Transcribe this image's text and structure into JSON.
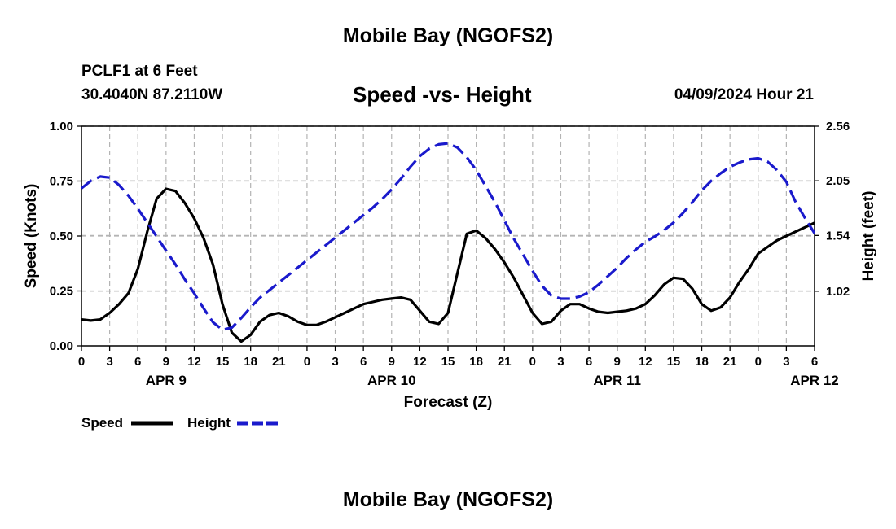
{
  "header": {
    "title": "Mobile Bay (NGOFS2)",
    "station": "PCLF1 at 6 Feet",
    "coordinates": "30.4040N  87.2110W",
    "subtitle": "Speed -vs- Height",
    "run_time": "04/09/2024 Hour 21"
  },
  "footer": {
    "title": "Mobile Bay (NGOFS2)"
  },
  "chart_data": {
    "type": "line",
    "xlabel": "Forecast (Z)",
    "ylabel": "Speed (Knots)",
    "y2label": "Height (feet)",
    "x_unit": "hours since 2024-04-09 00Z",
    "xlim": [
      0,
      78
    ],
    "ylim": [
      0,
      1.0
    ],
    "y2lim": [
      0.51,
      2.56
    ],
    "x_ticks": [
      0,
      3,
      6,
      9,
      12,
      15,
      18,
      21,
      24,
      27,
      30,
      33,
      36,
      39,
      42,
      45,
      48,
      51,
      54,
      57,
      60,
      63,
      66,
      69,
      72,
      75,
      78
    ],
    "x_tick_labels": [
      "0",
      "3",
      "6",
      "9",
      "12",
      "15",
      "18",
      "21",
      "0",
      "3",
      "6",
      "9",
      "12",
      "15",
      "18",
      "21",
      "0",
      "3",
      "6",
      "9",
      "12",
      "15",
      "18",
      "21",
      "0",
      "3",
      "6"
    ],
    "date_ticks": [
      9,
      33,
      57,
      78
    ],
    "date_labels": [
      "APR 9",
      "APR 10",
      "APR 11",
      "APR 12"
    ],
    "y_ticks": [
      0.0,
      0.25,
      0.5,
      0.75,
      1.0
    ],
    "y_tick_labels": [
      "0.00",
      "0.25",
      "0.50",
      "0.75",
      "1.00"
    ],
    "y2_ticks": [
      1.02,
      1.54,
      2.05,
      2.56
    ],
    "y2_tick_labels": [
      "1.02",
      "1.54",
      "2.05",
      "2.56"
    ],
    "grid": true,
    "legend": "bottom-left",
    "series": [
      {
        "name": "Speed",
        "axis": "left",
        "color": "#000000",
        "style": "solid",
        "x": [
          0,
          1,
          2,
          3,
          4,
          5,
          6,
          7,
          8,
          9,
          10,
          11,
          12,
          13,
          14,
          15,
          16,
          17,
          18,
          19,
          20,
          21,
          22,
          23,
          24,
          25,
          26,
          27,
          28,
          29,
          30,
          31,
          32,
          33,
          34,
          35,
          36,
          37,
          38,
          39,
          40,
          41,
          42,
          43,
          44,
          45,
          46,
          47,
          48,
          49,
          50,
          51,
          52,
          53,
          54,
          55,
          56,
          57,
          58,
          59,
          60,
          61,
          62,
          63,
          64,
          65,
          66,
          67,
          68,
          69,
          70,
          71,
          72,
          73,
          74,
          75,
          76,
          77,
          78
        ],
        "values": [
          0.12,
          0.115,
          0.12,
          0.15,
          0.19,
          0.24,
          0.35,
          0.52,
          0.67,
          0.715,
          0.705,
          0.65,
          0.58,
          0.49,
          0.37,
          0.19,
          0.06,
          0.02,
          0.05,
          0.11,
          0.14,
          0.15,
          0.135,
          0.11,
          0.095,
          0.095,
          0.11,
          0.13,
          0.15,
          0.17,
          0.19,
          0.2,
          0.21,
          0.215,
          0.22,
          0.21,
          0.16,
          0.11,
          0.1,
          0.15,
          0.33,
          0.51,
          0.525,
          0.49,
          0.44,
          0.38,
          0.31,
          0.23,
          0.15,
          0.1,
          0.11,
          0.16,
          0.19,
          0.19,
          0.17,
          0.155,
          0.15,
          0.155,
          0.16,
          0.17,
          0.19,
          0.23,
          0.28,
          0.31,
          0.305,
          0.26,
          0.19,
          0.16,
          0.175,
          0.22,
          0.29,
          0.35,
          0.42,
          0.45,
          0.48,
          0.5,
          0.52,
          0.54,
          0.56
        ]
      },
      {
        "name": "Height",
        "axis": "right",
        "color": "#1a1acc",
        "style": "dashed",
        "x": [
          0,
          1,
          2,
          3,
          4,
          5,
          6,
          7,
          8,
          9,
          10,
          11,
          12,
          13,
          14,
          15,
          16,
          17,
          18,
          19,
          20,
          21,
          22,
          23,
          24,
          25,
          26,
          27,
          28,
          29,
          30,
          31,
          32,
          33,
          34,
          35,
          36,
          37,
          38,
          39,
          40,
          41,
          42,
          43,
          44,
          45,
          46,
          47,
          48,
          49,
          50,
          51,
          52,
          53,
          54,
          55,
          56,
          57,
          58,
          59,
          60,
          61,
          62,
          63,
          64,
          65,
          66,
          67,
          68,
          69,
          70,
          71,
          72,
          73,
          74,
          75,
          76,
          77,
          78
        ],
        "values": [
          1.98,
          2.05,
          2.09,
          2.08,
          2.01,
          1.91,
          1.79,
          1.66,
          1.53,
          1.4,
          1.27,
          1.13,
          1.0,
          0.86,
          0.73,
          0.66,
          0.68,
          0.77,
          0.87,
          0.96,
          1.03,
          1.1,
          1.17,
          1.24,
          1.31,
          1.38,
          1.45,
          1.52,
          1.59,
          1.66,
          1.73,
          1.8,
          1.88,
          1.97,
          2.07,
          2.18,
          2.28,
          2.35,
          2.39,
          2.4,
          2.36,
          2.27,
          2.15,
          2.0,
          1.85,
          1.68,
          1.51,
          1.36,
          1.21,
          1.07,
          0.98,
          0.95,
          0.95,
          0.97,
          1.01,
          1.08,
          1.16,
          1.24,
          1.33,
          1.41,
          1.48,
          1.53,
          1.59,
          1.66,
          1.75,
          1.85,
          1.96,
          2.05,
          2.12,
          2.18,
          2.22,
          2.25,
          2.26,
          2.23,
          2.15,
          2.04,
          1.85,
          1.7,
          1.56
        ]
      }
    ]
  }
}
